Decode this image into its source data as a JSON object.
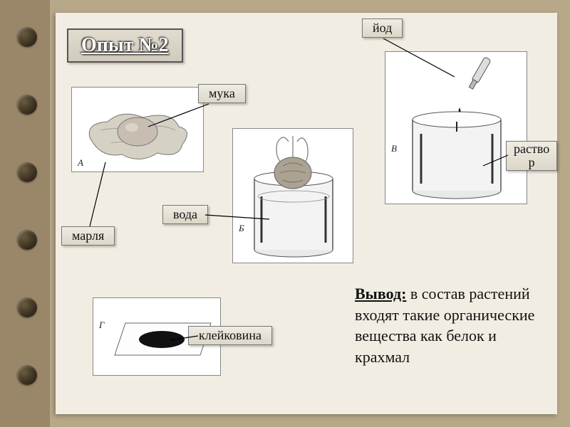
{
  "background": {
    "outer": "#b8a88a",
    "binder": "#9a8668",
    "paper": "#f1ede2"
  },
  "rings": {
    "count": 6,
    "top_start": 38,
    "spacing": 95
  },
  "title": "Опыт №2",
  "labels": {
    "iodine": "йод",
    "flour": "мука",
    "solution": "раство\nр",
    "water": "вода",
    "gauze": "марля",
    "gluten": "клейковина"
  },
  "panel_letters": {
    "A": "А",
    "B": "Б",
    "V": "В",
    "G": "Г"
  },
  "conclusion_lead": "Вывод:",
  "conclusion_rest": " в состав растений входят такие органические вещества как белок и крахмал",
  "colors": {
    "panel_border": "#888888",
    "panel_bg": "#ffffff",
    "label_border": "#777777",
    "text": "#111111",
    "line": "#000000",
    "beaker_stroke": "#555555",
    "beaker_fill": "#e9e9e9",
    "dough": "#c7beb1",
    "gluten_dark": "#1a1a1a",
    "cloth": "#d6d1c5"
  }
}
